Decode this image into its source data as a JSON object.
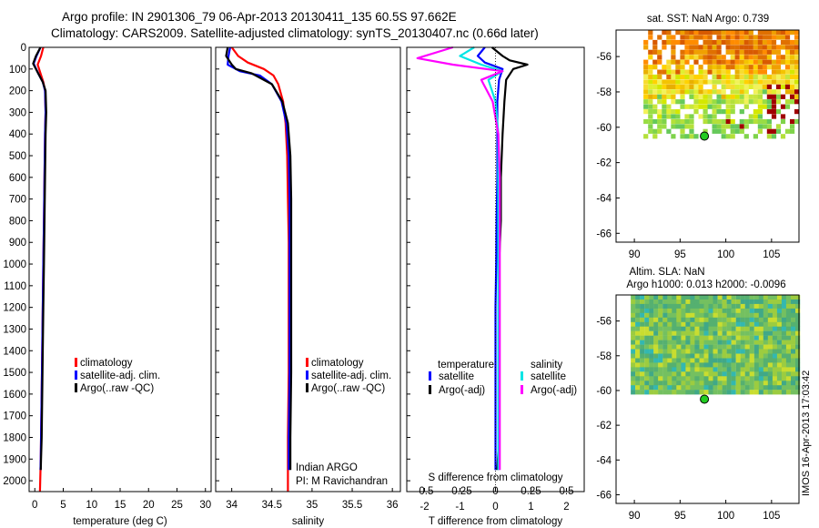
{
  "header": {
    "title_line1": "Argo profile: IN 2901306_79 06-Apr-2013 20130411_135 60.5S 97.662E",
    "title_line2": "Climatology: CARS2009. Satellite-adjusted climatology: synTS_20130407.nc (0.66d later)"
  },
  "colors": {
    "climatology": "#ff0000",
    "satellite": "#0000ff",
    "argo": "#000000",
    "salinity_satellite": "#00e5e5",
    "salinity_argo": "#ff00ff"
  },
  "chart_data": [
    {
      "type": "line",
      "xlabel": "temperature (deg C)",
      "xlim": [
        -1,
        31
      ],
      "xticks": [
        "0",
        "5",
        "10",
        "15",
        "20",
        "25",
        "30"
      ],
      "ylim": [
        2050,
        0
      ],
      "yticks": [
        "0",
        "100",
        "200",
        "300",
        "400",
        "500",
        "600",
        "700",
        "800",
        "900",
        "1000",
        "1100",
        "1200",
        "1300",
        "1400",
        "1500",
        "1600",
        "1700",
        "1800",
        "1900",
        "2000"
      ],
      "legend": [
        "climatology",
        "satellite-adj. clim.",
        "Argo(..raw -QC)"
      ],
      "series": [
        {
          "name": "climatology",
          "color": "#ff0000",
          "x": [
            1.5,
            1.1,
            0.5,
            1.0,
            1.5,
            1.8,
            1.9,
            1.8,
            1.7,
            1.6,
            1.5,
            1.4,
            1.3,
            1.2,
            1.1,
            1.05,
            1.0,
            0.95,
            0.9
          ],
          "y": [
            0,
            40,
            80,
            120,
            160,
            200,
            300,
            400,
            600,
            800,
            1000,
            1200,
            1400,
            1600,
            1800,
            1900,
            1950,
            2000,
            2050
          ]
        },
        {
          "name": "satellite-adj. clim.",
          "color": "#0000ff",
          "x": [
            1.0,
            0.3,
            -0.2,
            0.6,
            1.4,
            1.8,
            1.9,
            1.8,
            1.7,
            1.6,
            1.5,
            1.4,
            1.3,
            1.2,
            1.1,
            1.05,
            1.0
          ],
          "y": [
            0,
            40,
            75,
            120,
            160,
            200,
            300,
            400,
            600,
            800,
            1000,
            1200,
            1400,
            1600,
            1800,
            1900,
            1950
          ]
        },
        {
          "name": "Argo(..raw -QC)",
          "color": "#000000",
          "x": [
            1.0,
            0.2,
            -0.3,
            0.6,
            1.4,
            1.9,
            2.0,
            1.9,
            1.8,
            1.7,
            1.6,
            1.5,
            1.4,
            1.3,
            1.2,
            1.1,
            1.05
          ],
          "y": [
            0,
            40,
            75,
            120,
            160,
            200,
            300,
            400,
            600,
            800,
            1000,
            1200,
            1400,
            1600,
            1800,
            1900,
            1950
          ]
        }
      ]
    },
    {
      "type": "line",
      "xlabel": "salinity",
      "xlim": [
        33.8,
        36.1
      ],
      "xticks": [
        "34",
        "34.5",
        "35",
        "35.5",
        "36"
      ],
      "ylim": [
        2050,
        0
      ],
      "legend": [
        "climatology",
        "satellite-adj. clim.",
        "Argo(..raw -QC)"
      ],
      "annotations": [
        "Indian ARGO",
        "PI: M Ravichandran"
      ],
      "series": [
        {
          "name": "climatology",
          "color": "#ff0000",
          "x": [
            34.0,
            34.08,
            34.2,
            34.4,
            34.52,
            34.58,
            34.64,
            34.67,
            34.69,
            34.7,
            34.71,
            34.71,
            34.71,
            34.7,
            34.7,
            34.7,
            34.7
          ],
          "y": [
            0,
            40,
            70,
            100,
            130,
            170,
            250,
            350,
            500,
            700,
            900,
            1200,
            1500,
            1800,
            1950,
            2000,
            2050
          ]
        },
        {
          "name": "satellite-adj. clim.",
          "color": "#0000ff",
          "x": [
            33.98,
            33.96,
            33.95,
            34.1,
            34.35,
            34.5,
            34.62,
            34.68,
            34.71,
            34.72,
            34.72,
            34.72,
            34.72,
            34.71,
            34.71,
            34.71
          ],
          "y": [
            0,
            40,
            80,
            110,
            130,
            170,
            250,
            350,
            500,
            700,
            900,
            1200,
            1500,
            1800,
            1900,
            1950
          ]
        },
        {
          "name": "Argo(..raw -QC)",
          "color": "#000000",
          "x": [
            33.95,
            33.93,
            34.0,
            34.05,
            34.25,
            34.5,
            34.63,
            34.7,
            34.73,
            34.74,
            34.74,
            34.74,
            34.74,
            34.73,
            34.73,
            34.73
          ],
          "y": [
            0,
            40,
            80,
            100,
            120,
            170,
            250,
            350,
            500,
            700,
            900,
            1200,
            1500,
            1800,
            1900,
            1950
          ]
        }
      ]
    },
    {
      "type": "line",
      "xlabel": "T difference from climatology",
      "xlabel_top": "S difference from climatology",
      "xlim": [
        -2.5,
        2.5
      ],
      "xticks": [
        "-2",
        "-1",
        "0",
        "1",
        "2"
      ],
      "xticks_top": [
        "-0.5",
        "-0.25",
        "0",
        "0.25",
        "0.5"
      ],
      "ylim": [
        2050,
        0
      ],
      "legend_headers": [
        "temperature",
        "salinity"
      ],
      "legend": [
        "satellite",
        "Argo(-adj)",
        "satellite",
        "Argo(-adj)"
      ],
      "series": [
        {
          "name": "satellite",
          "quantity": "temperature",
          "color": "#0000ff",
          "x": [
            -0.3,
            -0.5,
            -0.3,
            0.2,
            0.1,
            0.05,
            0.05,
            0.05,
            0.03,
            0.02,
            0.0,
            0.0,
            0.0,
            0.0,
            0.0,
            0.0
          ],
          "y": [
            0,
            40,
            70,
            100,
            150,
            250,
            400,
            600,
            800,
            1000,
            1200,
            1400,
            1600,
            1800,
            1900,
            1950
          ]
        },
        {
          "name": "Argo(-adj)",
          "quantity": "temperature",
          "color": "#000000",
          "x": [
            -0.1,
            0.2,
            0.4,
            0.9,
            0.5,
            0.3,
            0.25,
            0.2,
            0.15,
            0.15,
            0.1,
            0.1,
            0.1,
            0.1,
            0.1,
            0.05
          ],
          "y": [
            0,
            40,
            60,
            80,
            100,
            150,
            250,
            400,
            600,
            800,
            1000,
            1200,
            1400,
            1600,
            1800,
            1950
          ]
        },
        {
          "name": "satellite",
          "quantity": "salinity",
          "color": "#00e5e5",
          "x": [
            -0.15,
            -0.25,
            -0.1,
            0.05,
            -0.05,
            0.0,
            0.02,
            0.02,
            0.02,
            0.02,
            0.02,
            0.02,
            0.02,
            0.02,
            0.02,
            0.02
          ],
          "y": [
            0,
            40,
            80,
            110,
            150,
            250,
            400,
            600,
            800,
            1000,
            1200,
            1400,
            1600,
            1800,
            1900,
            1950
          ]
        },
        {
          "name": "Argo(-adj)",
          "quantity": "salinity",
          "color": "#ff00ff",
          "x": [
            -0.3,
            -0.55,
            -0.3,
            0.05,
            -0.1,
            -0.02,
            0.02,
            0.03,
            0.03,
            0.03,
            0.03,
            0.03,
            0.03,
            0.03,
            0.03,
            0.03
          ],
          "y": [
            0,
            50,
            80,
            110,
            150,
            250,
            400,
            600,
            800,
            1000,
            1200,
            1400,
            1600,
            1800,
            1900,
            1950
          ]
        }
      ]
    },
    {
      "type": "heatmap",
      "title": "sat. SST: NaN Argo: 0.739",
      "xlim": [
        88,
        108
      ],
      "ylim": [
        -66.5,
        -54.5
      ],
      "xticks": [
        "90",
        "95",
        "100",
        "105"
      ],
      "yticks": [
        "-56",
        "-58",
        "-60",
        "-62",
        "-64",
        "-66"
      ],
      "marker": {
        "lon": 97.662,
        "lat": -60.5
      },
      "colormap": "sst"
    },
    {
      "type": "heatmap",
      "title": "Altim. SLA: NaN",
      "subtitle": "Argo h1000: 0.013 h2000: -0.0096",
      "xlim": [
        88,
        108
      ],
      "ylim": [
        -66.5,
        -54.5
      ],
      "xticks": [
        "90",
        "95",
        "100",
        "105"
      ],
      "yticks": [
        "-56",
        "-58",
        "-60",
        "-62",
        "-64",
        "-66"
      ],
      "marker": {
        "lon": 97.662,
        "lat": -60.5
      },
      "colormap": "sla"
    }
  ],
  "footer": {
    "credit": "IMOS 16-Apr-2013 17:03:42"
  }
}
